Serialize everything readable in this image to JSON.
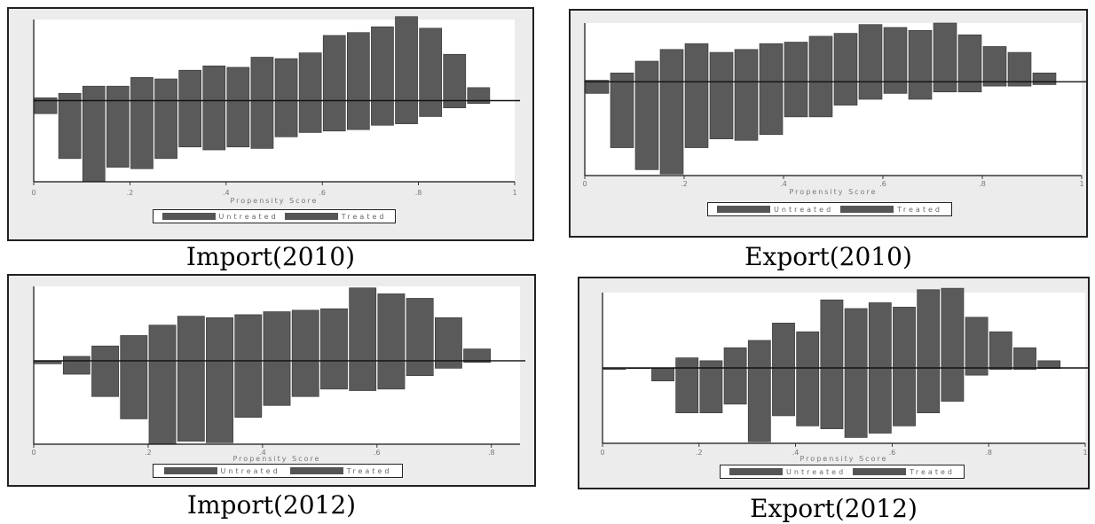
{
  "colors": {
    "bar": "#5a5a5a",
    "bar_stroke": "#333333",
    "panel_bg": "#ececec",
    "plot_bg": "#ffffff",
    "axis": "#111111"
  },
  "chart_data": [
    {
      "id": "import2010",
      "type": "bar",
      "caption": "Import(2010)",
      "xlabel": "Propensity Score",
      "xlim": [
        0,
        1
      ],
      "xticks": [
        0,
        0.2,
        0.4,
        0.6,
        0.8,
        1
      ],
      "xtick_labels": [
        "0",
        ".2",
        ".4",
        ".6",
        ".8",
        "1"
      ],
      "ylim": [
        -0.56,
        0.56
      ],
      "grid": false,
      "legend_position": "bottom",
      "series": [
        {
          "name": "Untreated",
          "x": [
            0.025,
            0.075,
            0.125,
            0.175,
            0.225,
            0.275,
            0.325,
            0.375,
            0.425,
            0.475,
            0.525,
            0.575,
            0.625,
            0.675,
            0.725,
            0.775,
            0.825,
            0.875,
            0.925
          ],
          "values": [
            -0.09,
            -0.4,
            -0.56,
            -0.46,
            -0.47,
            -0.4,
            -0.32,
            -0.34,
            -0.32,
            -0.33,
            -0.25,
            -0.22,
            -0.21,
            -0.2,
            -0.17,
            -0.16,
            -0.11,
            -0.05,
            -0.02
          ]
        },
        {
          "name": "Treated",
          "x": [
            0.025,
            0.075,
            0.125,
            0.175,
            0.225,
            0.275,
            0.325,
            0.375,
            0.425,
            0.475,
            0.525,
            0.575,
            0.625,
            0.675,
            0.725,
            0.775,
            0.825,
            0.875,
            0.925
          ],
          "values": [
            0.02,
            0.05,
            0.1,
            0.1,
            0.16,
            0.15,
            0.21,
            0.24,
            0.23,
            0.3,
            0.29,
            0.33,
            0.45,
            0.47,
            0.51,
            0.58,
            0.5,
            0.32,
            0.09
          ]
        }
      ]
    },
    {
      "id": "export2010",
      "type": "bar",
      "caption": "Export(2010)",
      "xlabel": "Propensity Score",
      "xlim": [
        0,
        1
      ],
      "xticks": [
        0,
        0.2,
        0.4,
        0.6,
        0.8,
        1
      ],
      "xtick_labels": [
        "0",
        ".2",
        ".4",
        ".6",
        ".8",
        "1"
      ],
      "ylim": [
        -0.64,
        0.4
      ],
      "grid": false,
      "legend_position": "bottom",
      "series": [
        {
          "name": "Untreated",
          "x": [
            0.025,
            0.075,
            0.125,
            0.175,
            0.225,
            0.275,
            0.325,
            0.375,
            0.425,
            0.475,
            0.525,
            0.575,
            0.625,
            0.675,
            0.725,
            0.775,
            0.825,
            0.875,
            0.925
          ],
          "values": [
            -0.08,
            -0.45,
            -0.6,
            -0.63,
            -0.45,
            -0.39,
            -0.4,
            -0.36,
            -0.24,
            -0.24,
            -0.16,
            -0.12,
            -0.08,
            -0.12,
            -0.07,
            -0.07,
            -0.03,
            -0.03,
            -0.02
          ]
        },
        {
          "name": "Treated",
          "x": [
            0.025,
            0.075,
            0.125,
            0.175,
            0.225,
            0.275,
            0.325,
            0.375,
            0.425,
            0.475,
            0.525,
            0.575,
            0.625,
            0.675,
            0.725,
            0.775,
            0.825,
            0.875,
            0.925
          ],
          "values": [
            0.01,
            0.06,
            0.14,
            0.22,
            0.26,
            0.2,
            0.22,
            0.26,
            0.27,
            0.31,
            0.33,
            0.39,
            0.37,
            0.35,
            0.4,
            0.32,
            0.24,
            0.2,
            0.06
          ]
        }
      ]
    },
    {
      "id": "import2012",
      "type": "bar",
      "caption": "Import(2012)",
      "xlabel": "Propensity Score",
      "xlim": [
        0,
        0.85
      ],
      "xticks": [
        0,
        0.2,
        0.4,
        0.6,
        0.8
      ],
      "xtick_labels": [
        "0",
        ".2",
        ".4",
        ".6",
        ".8"
      ],
      "ylim": [
        -0.56,
        0.5
      ],
      "grid": false,
      "legend_position": "bottom",
      "series": [
        {
          "name": "Untreated",
          "x": [
            0.025,
            0.075,
            0.125,
            0.175,
            0.225,
            0.275,
            0.325,
            0.375,
            0.425,
            0.475,
            0.525,
            0.575,
            0.625,
            0.675,
            0.725,
            0.775
          ],
          "values": [
            -0.02,
            -0.09,
            -0.24,
            -0.39,
            -0.56,
            -0.54,
            -0.55,
            -0.38,
            -0.3,
            -0.24,
            -0.19,
            -0.2,
            -0.19,
            -0.1,
            -0.05,
            -0.01
          ]
        },
        {
          "name": "Treated",
          "x": [
            0.025,
            0.075,
            0.125,
            0.175,
            0.225,
            0.275,
            0.325,
            0.375,
            0.425,
            0.475,
            0.525,
            0.575,
            0.625,
            0.675,
            0.725,
            0.775
          ],
          "values": [
            0.0,
            0.03,
            0.1,
            0.17,
            0.24,
            0.3,
            0.29,
            0.31,
            0.33,
            0.34,
            0.35,
            0.49,
            0.45,
            0.42,
            0.29,
            0.08
          ]
        }
      ]
    },
    {
      "id": "export2012",
      "type": "bar",
      "caption": "Export(2012)",
      "xlabel": "Propensity Score",
      "xlim": [
        0,
        1
      ],
      "xticks": [
        0,
        0.2,
        0.4,
        0.6,
        0.8,
        1
      ],
      "xtick_labels": [
        "0",
        ".2",
        ".4",
        ".6",
        ".8",
        "1"
      ],
      "ylim": [
        -0.52,
        0.52
      ],
      "grid": false,
      "legend_position": "bottom",
      "series": [
        {
          "name": "Untreated",
          "x": [
            0.025,
            0.075,
            0.125,
            0.175,
            0.225,
            0.275,
            0.325,
            0.375,
            0.425,
            0.475,
            0.525,
            0.575,
            0.625,
            0.675,
            0.725,
            0.775,
            0.825,
            0.875,
            0.925
          ],
          "values": [
            0.0,
            0.0,
            -0.09,
            -0.31,
            -0.31,
            -0.25,
            -0.51,
            -0.33,
            -0.4,
            -0.42,
            -0.48,
            -0.45,
            -0.4,
            -0.31,
            -0.23,
            -0.05,
            -0.01,
            -0.01,
            0.0
          ]
        },
        {
          "name": "Treated",
          "x": [
            0.025,
            0.075,
            0.125,
            0.175,
            0.225,
            0.275,
            0.325,
            0.375,
            0.425,
            0.475,
            0.525,
            0.575,
            0.625,
            0.675,
            0.725,
            0.775,
            0.825,
            0.875,
            0.925
          ],
          "values": [
            -0.01,
            0.0,
            0.0,
            0.07,
            0.05,
            0.14,
            0.19,
            0.31,
            0.25,
            0.47,
            0.41,
            0.45,
            0.42,
            0.54,
            0.55,
            0.35,
            0.25,
            0.14,
            0.05
          ]
        }
      ]
    }
  ]
}
